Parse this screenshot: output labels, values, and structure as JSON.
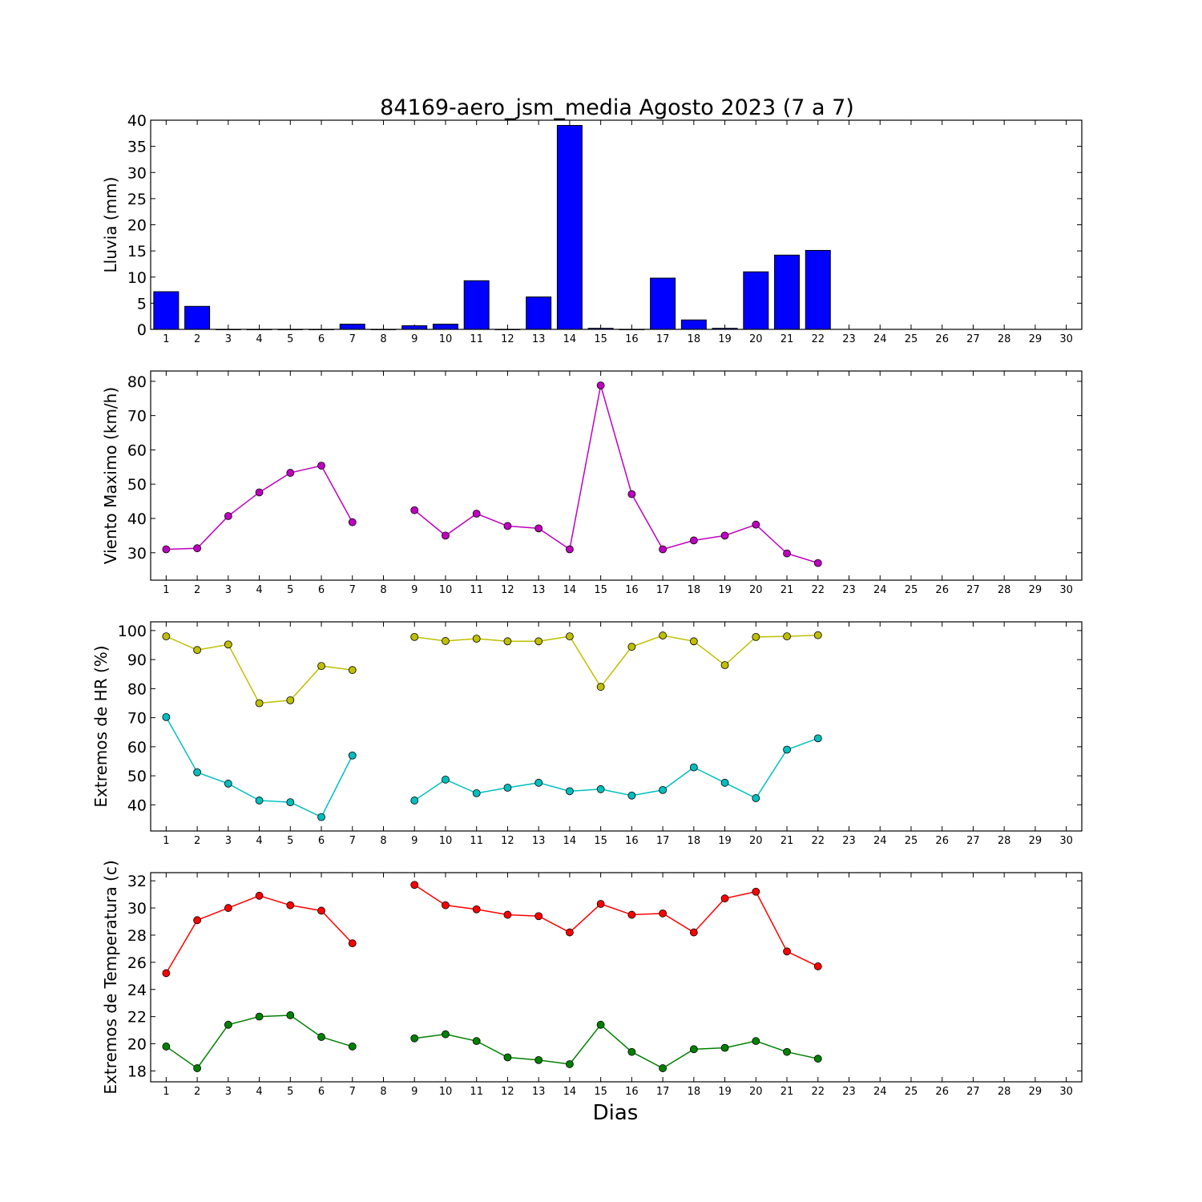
{
  "title": "84169-aero_jsm_media Agosto 2023  (7 a 7)",
  "xlabel": "Dias",
  "colors": {
    "bar": "#0000ff",
    "wind": "#bf00bf",
    "hr_max": "#bfbf00",
    "hr_min": "#00bfbf",
    "temp_max": "#ff0000",
    "temp_min": "#008000"
  },
  "chart_data": [
    {
      "type": "bar",
      "ylabel": "Lluvia (mm)",
      "ylim": [
        0,
        40
      ],
      "yticks": [
        0,
        5,
        10,
        15,
        20,
        25,
        30,
        35,
        40
      ],
      "x": [
        1,
        2,
        3,
        4,
        5,
        6,
        7,
        8,
        9,
        10,
        11,
        12,
        13,
        14,
        15,
        16,
        17,
        18,
        19,
        20,
        21,
        22
      ],
      "values": [
        7.2,
        4.4,
        0,
        0,
        0,
        0,
        1.0,
        0,
        0.7,
        1.0,
        9.3,
        0,
        6.2,
        39.0,
        0.2,
        0,
        9.8,
        1.8,
        0.2,
        11.0,
        14.2,
        15.1
      ],
      "xticks": [
        1,
        2,
        3,
        4,
        5,
        6,
        7,
        8,
        9,
        10,
        11,
        12,
        13,
        14,
        15,
        16,
        17,
        18,
        19,
        20,
        21,
        22,
        23,
        24,
        25,
        26,
        27,
        28,
        29,
        30
      ],
      "grid": false
    },
    {
      "type": "line",
      "ylabel": "Viento Maximo (km/h)",
      "ylim": [
        22,
        83
      ],
      "yticks": [
        30,
        40,
        50,
        60,
        70,
        80
      ],
      "xticks": [
        1,
        2,
        3,
        4,
        5,
        6,
        7,
        8,
        9,
        10,
        11,
        12,
        13,
        14,
        15,
        16,
        17,
        18,
        19,
        20,
        21,
        22,
        23,
        24,
        25,
        26,
        27,
        28,
        29,
        30
      ],
      "x": [
        1,
        2,
        3,
        4,
        5,
        6,
        7,
        8,
        9,
        10,
        11,
        12,
        13,
        14,
        15,
        16,
        17,
        18,
        19,
        20,
        21,
        22
      ],
      "series": [
        {
          "values": [
            31.0,
            31.3,
            40.7,
            47.6,
            53.3,
            55.4,
            38.9,
            null,
            42.4,
            35.0,
            41.4,
            37.8,
            37.1,
            31.0,
            78.8,
            47.1,
            31.0,
            33.6,
            35.0,
            38.2,
            29.8,
            27.0
          ]
        }
      ],
      "grid": false
    },
    {
      "type": "line",
      "ylabel": "Extremos de HR (%)",
      "ylim": [
        31,
        103
      ],
      "yticks": [
        40,
        50,
        60,
        70,
        80,
        90,
        100
      ],
      "xticks": [
        1,
        2,
        3,
        4,
        5,
        6,
        7,
        8,
        9,
        10,
        11,
        12,
        13,
        14,
        15,
        16,
        17,
        18,
        19,
        20,
        21,
        22,
        23,
        24,
        25,
        26,
        27,
        28,
        29,
        30
      ],
      "x": [
        1,
        2,
        3,
        4,
        5,
        6,
        7,
        8,
        9,
        10,
        11,
        12,
        13,
        14,
        15,
        16,
        17,
        18,
        19,
        20,
        21,
        22
      ],
      "series": [
        {
          "values": [
            98.0,
            93.3,
            95.2,
            75.0,
            76.0,
            87.8,
            86.4,
            null,
            97.8,
            96.4,
            97.2,
            96.3,
            96.3,
            98.0,
            80.6,
            94.4,
            98.3,
            96.3,
            88.1,
            97.8,
            98.0,
            98.4
          ]
        },
        {
          "values": [
            70.2,
            51.2,
            47.3,
            41.5,
            40.9,
            35.8,
            57.0,
            null,
            41.5,
            48.7,
            44.0,
            45.9,
            47.6,
            44.7,
            45.4,
            43.2,
            45.1,
            52.9,
            47.6,
            42.3,
            59.0,
            62.9
          ]
        }
      ],
      "grid": false
    },
    {
      "type": "line",
      "ylabel": "Extremos de Temperatura (c)",
      "ylim": [
        17.2,
        32.6
      ],
      "yticks": [
        18,
        20,
        22,
        24,
        26,
        28,
        30,
        32
      ],
      "xticks": [
        1,
        2,
        3,
        4,
        5,
        6,
        7,
        8,
        9,
        10,
        11,
        12,
        13,
        14,
        15,
        16,
        17,
        18,
        19,
        20,
        21,
        22,
        23,
        24,
        25,
        26,
        27,
        28,
        29,
        30
      ],
      "x": [
        1,
        2,
        3,
        4,
        5,
        6,
        7,
        8,
        9,
        10,
        11,
        12,
        13,
        14,
        15,
        16,
        17,
        18,
        19,
        20,
        21,
        22
      ],
      "series": [
        {
          "values": [
            25.2,
            29.1,
            30.0,
            30.9,
            30.2,
            29.8,
            27.4,
            null,
            31.7,
            30.2,
            29.9,
            29.5,
            29.4,
            28.2,
            30.3,
            29.5,
            29.6,
            28.2,
            30.7,
            31.2,
            26.8,
            25.7
          ]
        },
        {
          "values": [
            19.8,
            18.2,
            21.4,
            22.0,
            22.1,
            20.5,
            19.8,
            null,
            20.4,
            20.7,
            20.2,
            19.0,
            18.8,
            18.5,
            21.4,
            19.4,
            18.2,
            19.6,
            19.7,
            20.2,
            19.4,
            18.9
          ]
        }
      ],
      "grid": false
    }
  ]
}
